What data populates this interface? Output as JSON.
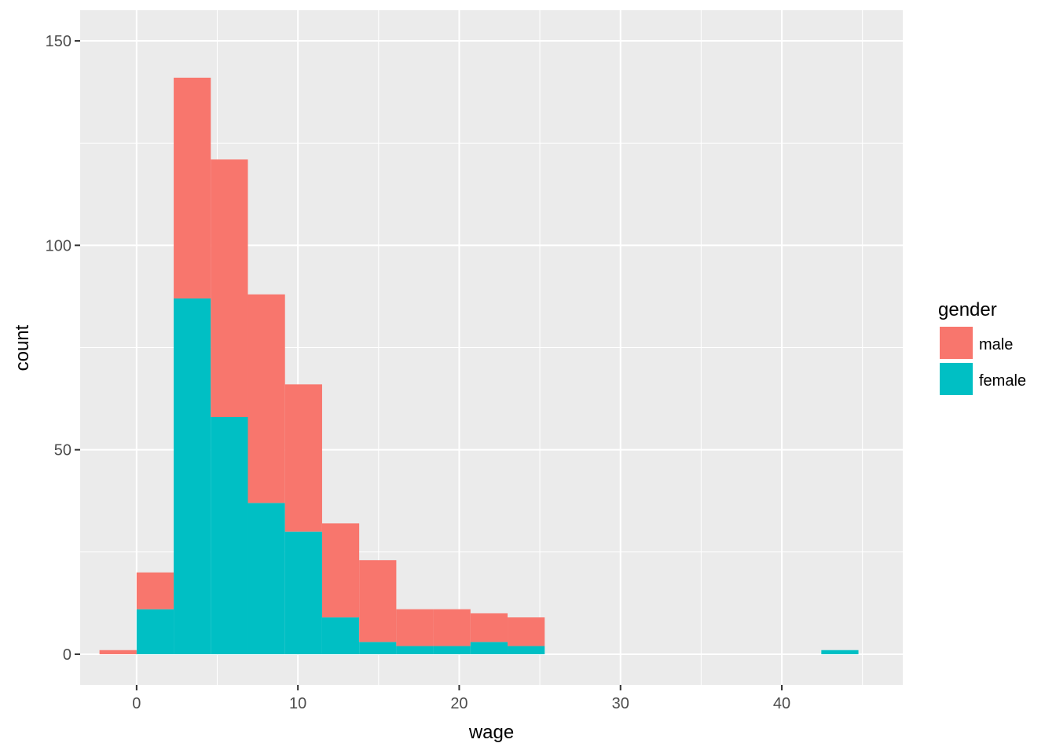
{
  "chart_data": {
    "type": "bar",
    "subtype": "stacked-histogram",
    "title": "",
    "xlabel": "wage",
    "ylabel": "count",
    "xlim": [
      -3.5,
      47.5
    ],
    "ylim": [
      -7.5,
      157.5
    ],
    "x_ticks": [
      0,
      10,
      20,
      30,
      40
    ],
    "x_tick_labels": [
      "0",
      "10",
      "20",
      "30",
      "40"
    ],
    "y_ticks": [
      0,
      50,
      100,
      150
    ],
    "y_tick_labels": [
      "0",
      "50",
      "100",
      "150"
    ],
    "grid": true,
    "legend": {
      "title": "gender",
      "position": "right"
    },
    "bin_width": 2.3,
    "bins": [
      -1.15,
      1.15,
      3.45,
      5.75,
      8.05,
      10.35,
      12.65,
      14.95,
      17.25,
      19.55,
      21.85,
      24.15,
      43.6
    ],
    "series": [
      {
        "name": "female",
        "color": "#00BFC4",
        "values": [
          0,
          11,
          87,
          58,
          37,
          30,
          9,
          3,
          2,
          2,
          3,
          2,
          1
        ]
      },
      {
        "name": "male",
        "color": "#F8766D",
        "values": [
          1,
          9,
          54,
          63,
          51,
          36,
          23,
          20,
          9,
          9,
          7,
          7,
          0
        ]
      }
    ],
    "stack_order": [
      "female",
      "male"
    ],
    "legend_order": [
      "male",
      "female"
    ]
  }
}
